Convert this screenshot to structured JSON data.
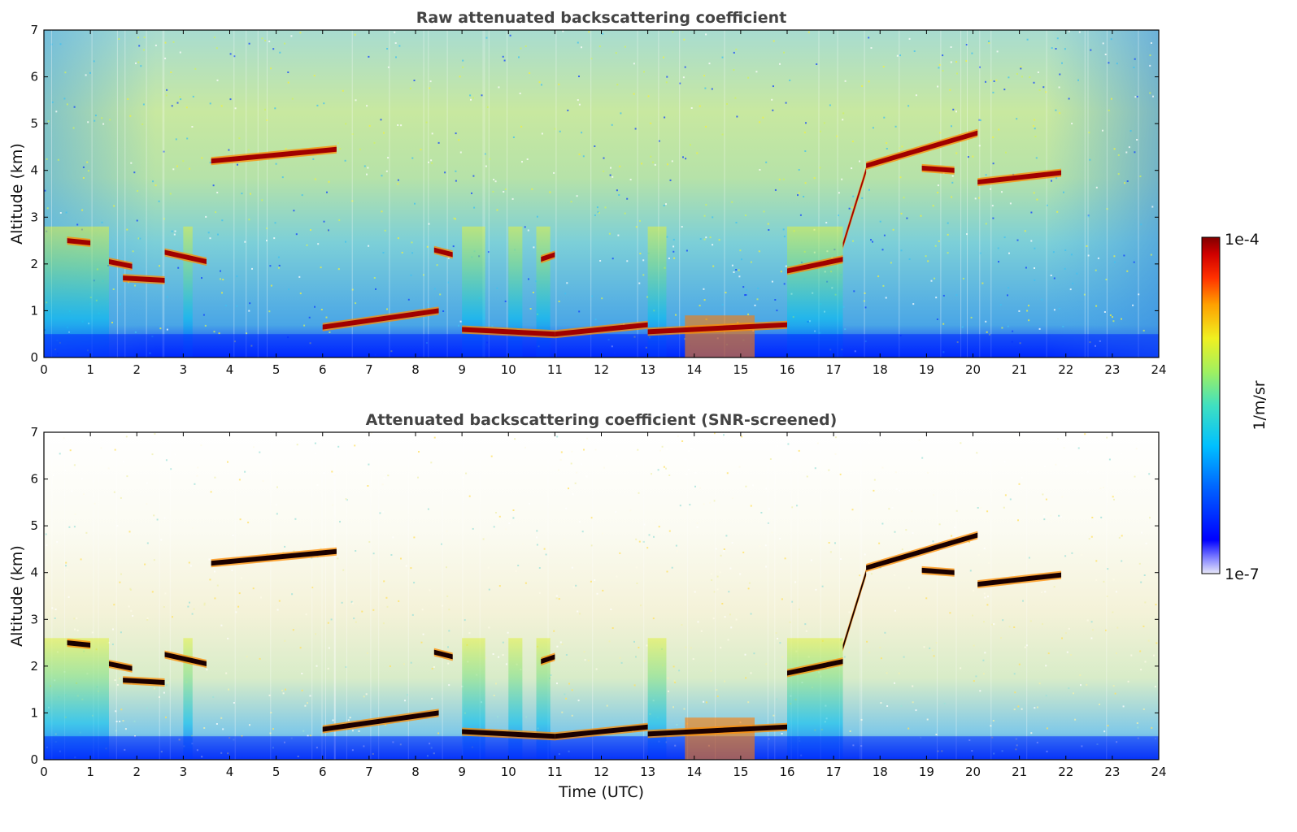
{
  "chart_data": [
    {
      "type": "heatmap",
      "title": "Raw attenuated backscattering coefficient",
      "xlabel": "",
      "ylabel": "Altitude (km)",
      "xlim": [
        0,
        24
      ],
      "ylim": [
        0,
        7
      ],
      "x_ticks": [
        "0",
        "1",
        "2",
        "3",
        "4",
        "5",
        "6",
        "7",
        "8",
        "9",
        "10",
        "11",
        "12",
        "13",
        "14",
        "15",
        "16",
        "17",
        "18",
        "19",
        "20",
        "21",
        "22",
        "23",
        "24"
      ],
      "y_ticks": [
        "0",
        "1",
        "2",
        "3",
        "4",
        "5",
        "6",
        "7"
      ],
      "screened": false,
      "layers": [
        {
          "t_start": 0.5,
          "t_end": 1.0,
          "alt_start": 2.5,
          "alt_end": 2.45
        },
        {
          "t_start": 1.4,
          "t_end": 1.9,
          "alt_start": 2.05,
          "alt_end": 1.95
        },
        {
          "t_start": 1.7,
          "t_end": 2.6,
          "alt_start": 1.7,
          "alt_end": 1.65
        },
        {
          "t_start": 2.6,
          "t_end": 3.5,
          "alt_start": 2.25,
          "alt_end": 2.05
        },
        {
          "t_start": 3.6,
          "t_end": 6.3,
          "alt_start": 4.2,
          "alt_end": 4.45
        },
        {
          "t_start": 6.0,
          "t_end": 8.5,
          "alt_start": 0.65,
          "alt_end": 1.0
        },
        {
          "t_start": 8.4,
          "t_end": 8.8,
          "alt_start": 2.3,
          "alt_end": 2.2
        },
        {
          "t_start": 9.0,
          "t_end": 11.0,
          "alt_start": 0.6,
          "alt_end": 0.5
        },
        {
          "t_start": 10.7,
          "t_end": 11.0,
          "alt_start": 2.1,
          "alt_end": 2.2
        },
        {
          "t_start": 11.0,
          "t_end": 13.0,
          "alt_start": 0.5,
          "alt_end": 0.7
        },
        {
          "t_start": 13.0,
          "t_end": 16.0,
          "alt_start": 0.55,
          "alt_end": 0.7
        },
        {
          "t_start": 16.0,
          "t_end": 17.2,
          "alt_start": 1.85,
          "alt_end": 2.1
        },
        {
          "t_start": 17.2,
          "t_end": 17.7,
          "alt_start": 2.4,
          "alt_end": 4.0
        },
        {
          "t_start": 17.7,
          "t_end": 20.1,
          "alt_start": 4.1,
          "alt_end": 4.8
        },
        {
          "t_start": 18.9,
          "t_end": 19.6,
          "alt_start": 4.05,
          "alt_end": 4.0
        },
        {
          "t_start": 20.1,
          "t_end": 21.9,
          "alt_start": 3.75,
          "alt_end": 3.95
        }
      ]
    },
    {
      "type": "heatmap",
      "title": "Attenuated backscattering coefficient (SNR-screened)",
      "xlabel": "Time (UTC)",
      "ylabel": "Altitude (km)",
      "xlim": [
        0,
        24
      ],
      "ylim": [
        0,
        7
      ],
      "x_ticks": [
        "0",
        "1",
        "2",
        "3",
        "4",
        "5",
        "6",
        "7",
        "8",
        "9",
        "10",
        "11",
        "12",
        "13",
        "14",
        "15",
        "16",
        "17",
        "18",
        "19",
        "20",
        "21",
        "22",
        "23",
        "24"
      ],
      "y_ticks": [
        "0",
        "1",
        "2",
        "3",
        "4",
        "5",
        "6",
        "7"
      ],
      "screened": true,
      "layers": [
        {
          "t_start": 0.5,
          "t_end": 1.0,
          "alt_start": 2.5,
          "alt_end": 2.45
        },
        {
          "t_start": 1.4,
          "t_end": 1.9,
          "alt_start": 2.05,
          "alt_end": 1.95
        },
        {
          "t_start": 1.7,
          "t_end": 2.6,
          "alt_start": 1.7,
          "alt_end": 1.65
        },
        {
          "t_start": 2.6,
          "t_end": 3.5,
          "alt_start": 2.25,
          "alt_end": 2.05
        },
        {
          "t_start": 3.6,
          "t_end": 6.3,
          "alt_start": 4.2,
          "alt_end": 4.45
        },
        {
          "t_start": 6.0,
          "t_end": 8.5,
          "alt_start": 0.65,
          "alt_end": 1.0
        },
        {
          "t_start": 8.4,
          "t_end": 8.8,
          "alt_start": 2.3,
          "alt_end": 2.2
        },
        {
          "t_start": 9.0,
          "t_end": 11.0,
          "alt_start": 0.6,
          "alt_end": 0.5
        },
        {
          "t_start": 10.7,
          "t_end": 11.0,
          "alt_start": 2.1,
          "alt_end": 2.2
        },
        {
          "t_start": 11.0,
          "t_end": 13.0,
          "alt_start": 0.5,
          "alt_end": 0.7
        },
        {
          "t_start": 13.0,
          "t_end": 16.0,
          "alt_start": 0.55,
          "alt_end": 0.7
        },
        {
          "t_start": 16.0,
          "t_end": 17.2,
          "alt_start": 1.85,
          "alt_end": 2.1
        },
        {
          "t_start": 17.2,
          "t_end": 17.7,
          "alt_start": 2.4,
          "alt_end": 4.0
        },
        {
          "t_start": 17.7,
          "t_end": 20.1,
          "alt_start": 4.1,
          "alt_end": 4.8
        },
        {
          "t_start": 18.9,
          "t_end": 19.6,
          "alt_start": 4.05,
          "alt_end": 4.0
        },
        {
          "t_start": 20.1,
          "t_end": 21.9,
          "alt_start": 3.75,
          "alt_end": 3.95
        }
      ]
    }
  ],
  "colorbar": {
    "label": "1/m/sr",
    "max_label": "1e-4",
    "min_label": "1e-7",
    "scale": "log",
    "colormap": [
      "#e8e8f8",
      "#9090ff",
      "#0000ff",
      "#0060ff",
      "#00c0ff",
      "#40e0c0",
      "#a0f060",
      "#f0f020",
      "#ffa000",
      "#ff3000",
      "#d00000",
      "#800000"
    ]
  }
}
